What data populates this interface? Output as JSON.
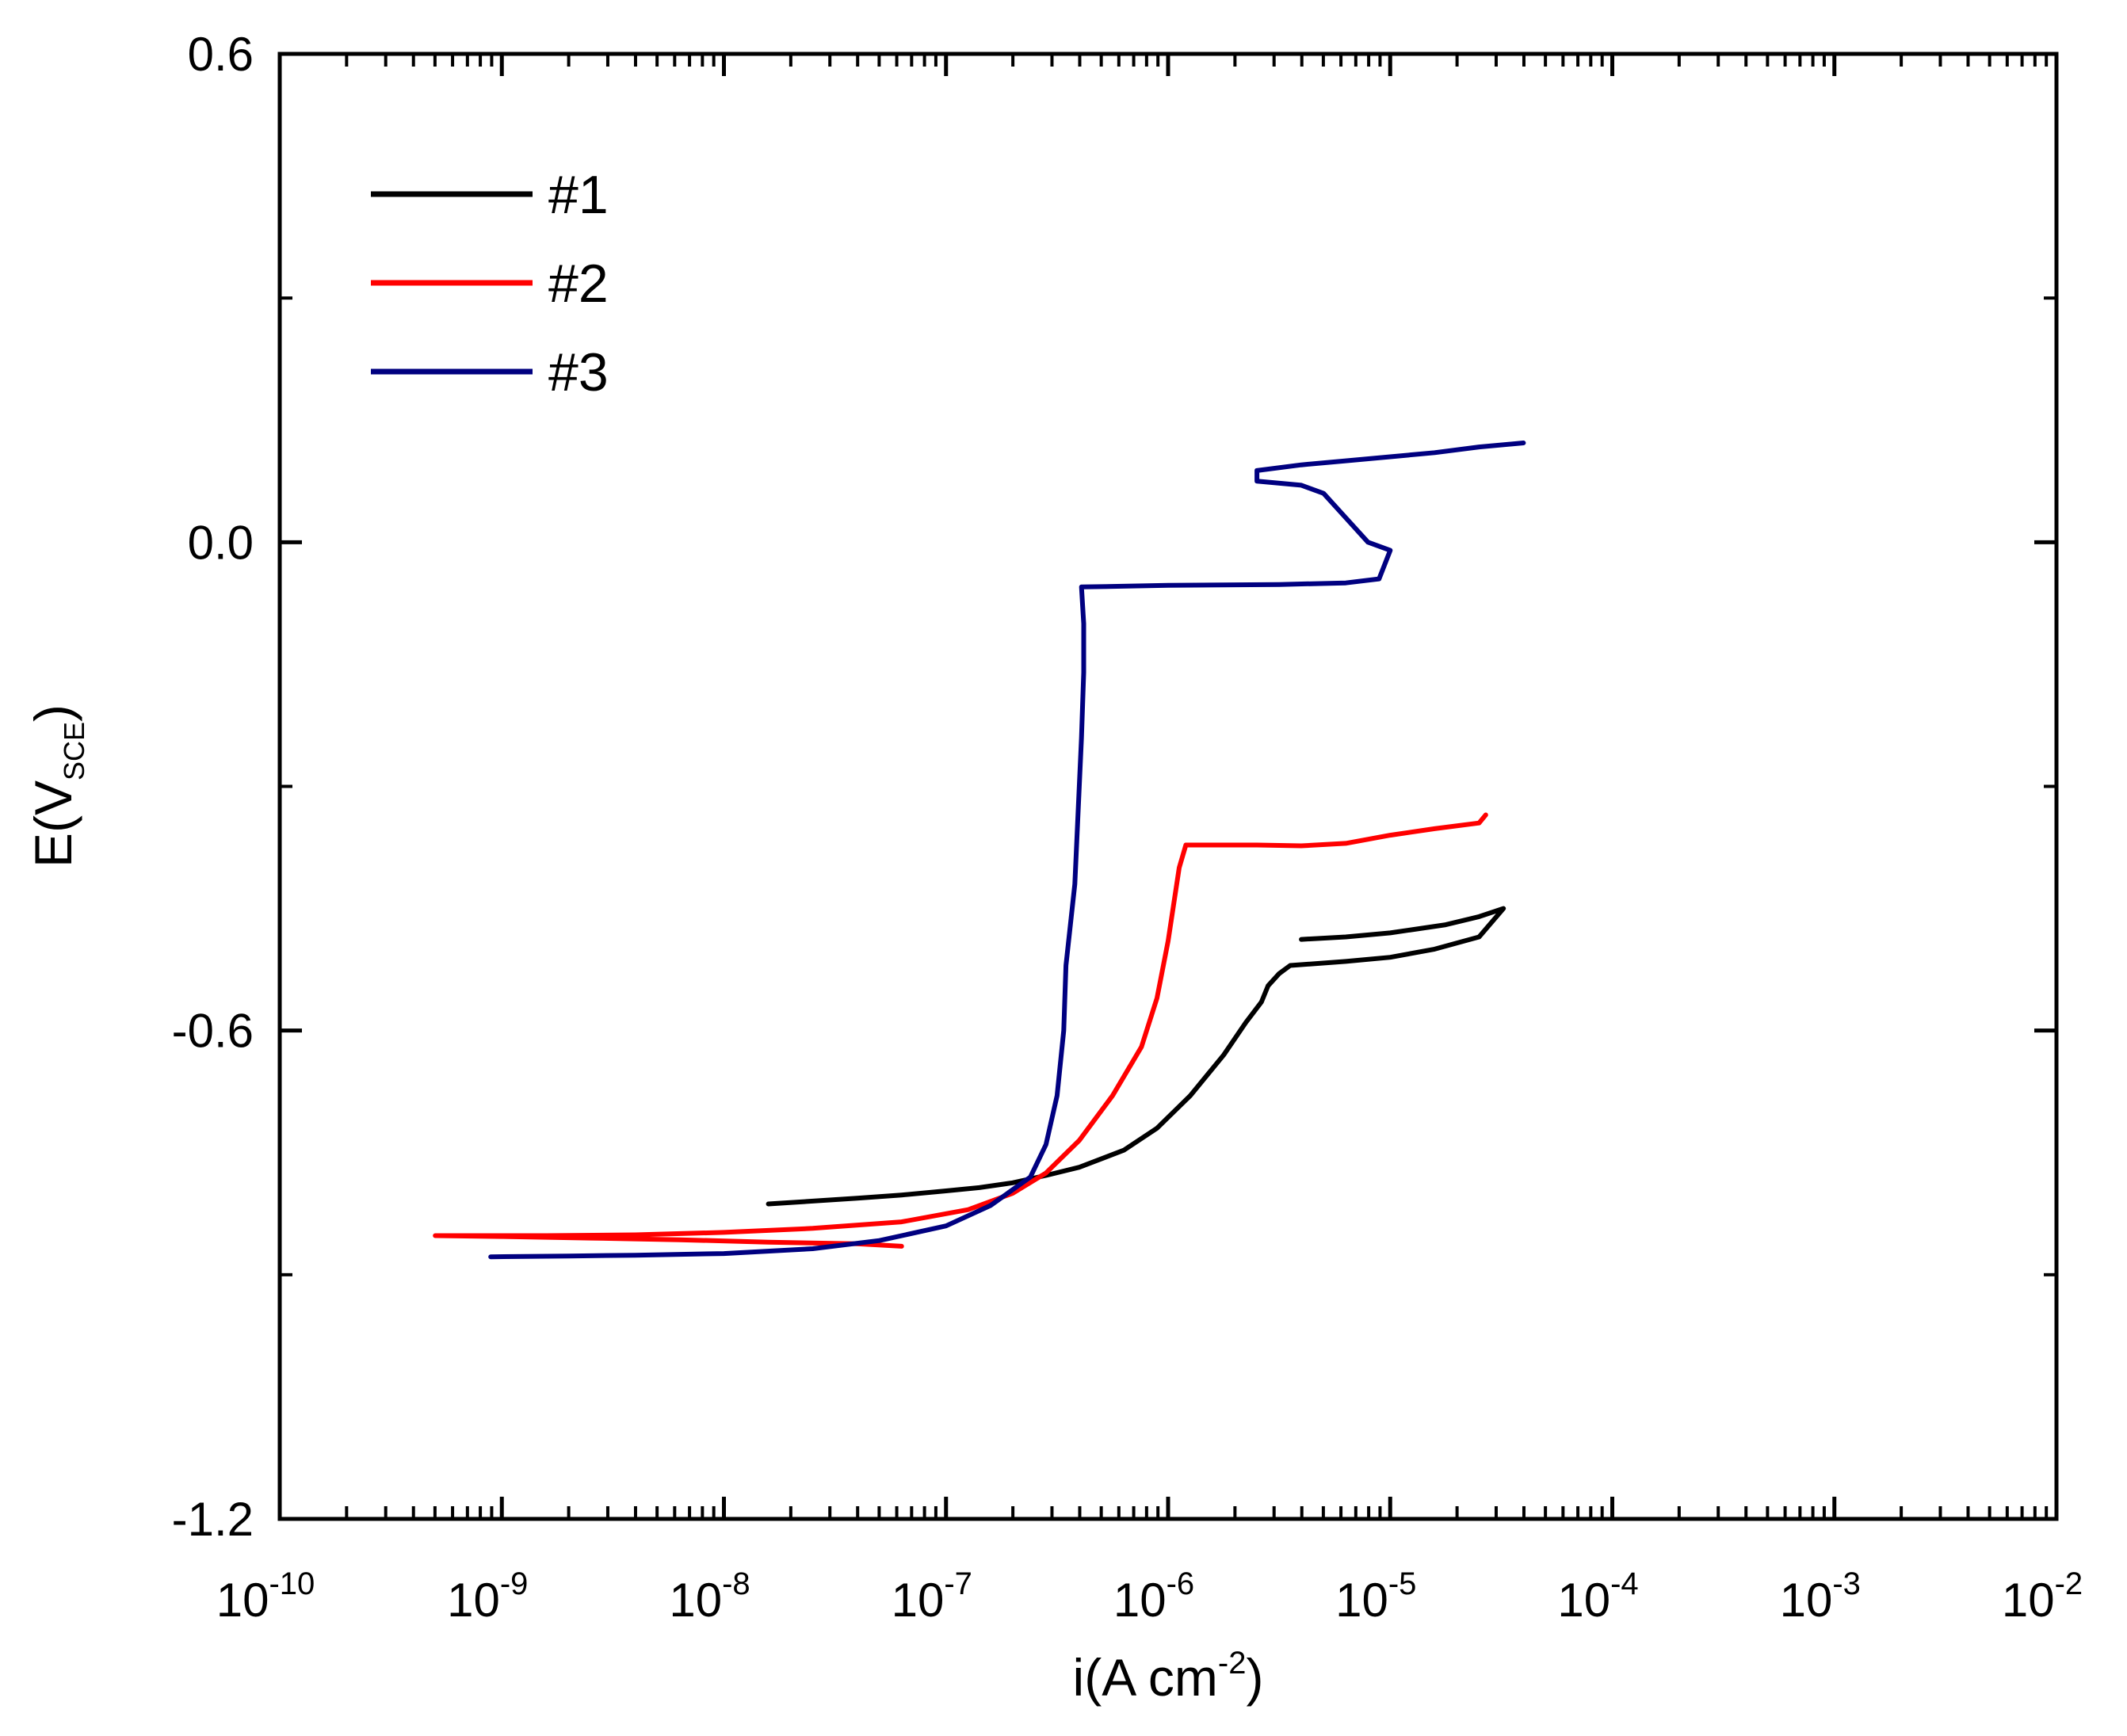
{
  "chart_data": {
    "type": "line",
    "title": "",
    "xlabel": {
      "base": "i(A cm",
      "sup": "-2",
      "close": ")"
    },
    "ylabel": {
      "base": "E(V",
      "sub": "SCE",
      "close": ")"
    },
    "xscale": "log",
    "xlim_exp": [
      -10,
      -2
    ],
    "ylim": [
      -1.2,
      0.6
    ],
    "x_tick_base": "10",
    "x_tick_exponents": [
      "-10",
      "-9",
      "-8",
      "-7",
      "-6",
      "-5",
      "-4",
      "-3",
      "-2"
    ],
    "y_ticks": [
      0.6,
      0.0,
      -0.6,
      -1.2
    ],
    "y_tick_labels": [
      "0.6",
      "0.0",
      "-0.6",
      "-1.2"
    ],
    "legend_position": "top-left",
    "series": [
      {
        "name": "#1",
        "color": "#000000",
        "points": [
          [
            -7.8,
            -0.813
          ],
          [
            -7.4,
            -0.806
          ],
          [
            -7.2,
            -0.802
          ],
          [
            -7.0,
            -0.797
          ],
          [
            -6.85,
            -0.793
          ],
          [
            -6.7,
            -0.787
          ],
          [
            -6.55,
            -0.778
          ],
          [
            -6.4,
            -0.768
          ],
          [
            -6.2,
            -0.747
          ],
          [
            -6.05,
            -0.72
          ],
          [
            -5.9,
            -0.68
          ],
          [
            -5.75,
            -0.63
          ],
          [
            -5.65,
            -0.59
          ],
          [
            -5.58,
            -0.565
          ],
          [
            -5.55,
            -0.545
          ],
          [
            -5.5,
            -0.53
          ],
          [
            -5.45,
            -0.52
          ],
          [
            -5.2,
            -0.515
          ],
          [
            -5.0,
            -0.51
          ],
          [
            -4.8,
            -0.5
          ],
          [
            -4.6,
            -0.485
          ],
          [
            -4.49,
            -0.45
          ],
          [
            -4.6,
            -0.46
          ],
          [
            -4.75,
            -0.47
          ],
          [
            -5.0,
            -0.48
          ],
          [
            -5.2,
            -0.485
          ],
          [
            -5.4,
            -0.488
          ]
        ]
      },
      {
        "name": "#2",
        "color": "#ff0000",
        "points": [
          [
            -7.2,
            -0.865
          ],
          [
            -7.4,
            -0.862
          ],
          [
            -7.8,
            -0.86
          ],
          [
            -8.2,
            -0.857
          ],
          [
            -8.6,
            -0.855
          ],
          [
            -9.0,
            -0.853
          ],
          [
            -9.3,
            -0.852
          ],
          [
            -8.8,
            -0.852
          ],
          [
            -8.4,
            -0.851
          ],
          [
            -8.0,
            -0.848
          ],
          [
            -7.6,
            -0.843
          ],
          [
            -7.2,
            -0.835
          ],
          [
            -6.9,
            -0.82
          ],
          [
            -6.7,
            -0.8
          ],
          [
            -6.55,
            -0.775
          ],
          [
            -6.4,
            -0.735
          ],
          [
            -6.25,
            -0.68
          ],
          [
            -6.12,
            -0.62
          ],
          [
            -6.05,
            -0.56
          ],
          [
            -6.0,
            -0.49
          ],
          [
            -5.95,
            -0.4
          ],
          [
            -5.92,
            -0.372
          ],
          [
            -5.6,
            -0.372
          ],
          [
            -5.4,
            -0.373
          ],
          [
            -5.2,
            -0.37
          ],
          [
            -5.0,
            -0.36
          ],
          [
            -4.8,
            -0.352
          ],
          [
            -4.6,
            -0.345
          ],
          [
            -4.57,
            -0.335
          ]
        ]
      },
      {
        "name": "#3",
        "color": "#000080",
        "points": [
          [
            -9.05,
            -0.878
          ],
          [
            -8.7,
            -0.877
          ],
          [
            -8.4,
            -0.876
          ],
          [
            -8.0,
            -0.874
          ],
          [
            -7.6,
            -0.868
          ],
          [
            -7.3,
            -0.858
          ],
          [
            -7.0,
            -0.84
          ],
          [
            -6.8,
            -0.815
          ],
          [
            -6.62,
            -0.78
          ],
          [
            -6.55,
            -0.74
          ],
          [
            -6.5,
            -0.68
          ],
          [
            -6.47,
            -0.6
          ],
          [
            -6.46,
            -0.52
          ],
          [
            -6.42,
            -0.42
          ],
          [
            -6.4,
            -0.3
          ],
          [
            -6.39,
            -0.24
          ],
          [
            -6.38,
            -0.16
          ],
          [
            -6.38,
            -0.1
          ],
          [
            -6.39,
            -0.055
          ],
          [
            -6.0,
            -0.053
          ],
          [
            -5.5,
            -0.052
          ],
          [
            -5.2,
            -0.05
          ],
          [
            -5.05,
            -0.045
          ],
          [
            -5.0,
            -0.01
          ],
          [
            -5.1,
            0.0
          ],
          [
            -5.2,
            0.03
          ],
          [
            -5.3,
            0.06
          ],
          [
            -5.4,
            0.07
          ],
          [
            -5.6,
            0.075
          ],
          [
            -5.6,
            0.088
          ],
          [
            -5.4,
            0.095
          ],
          [
            -5.2,
            0.1
          ],
          [
            -5.0,
            0.105
          ],
          [
            -4.8,
            0.11
          ],
          [
            -4.6,
            0.117
          ],
          [
            -4.4,
            0.122
          ]
        ]
      }
    ]
  }
}
